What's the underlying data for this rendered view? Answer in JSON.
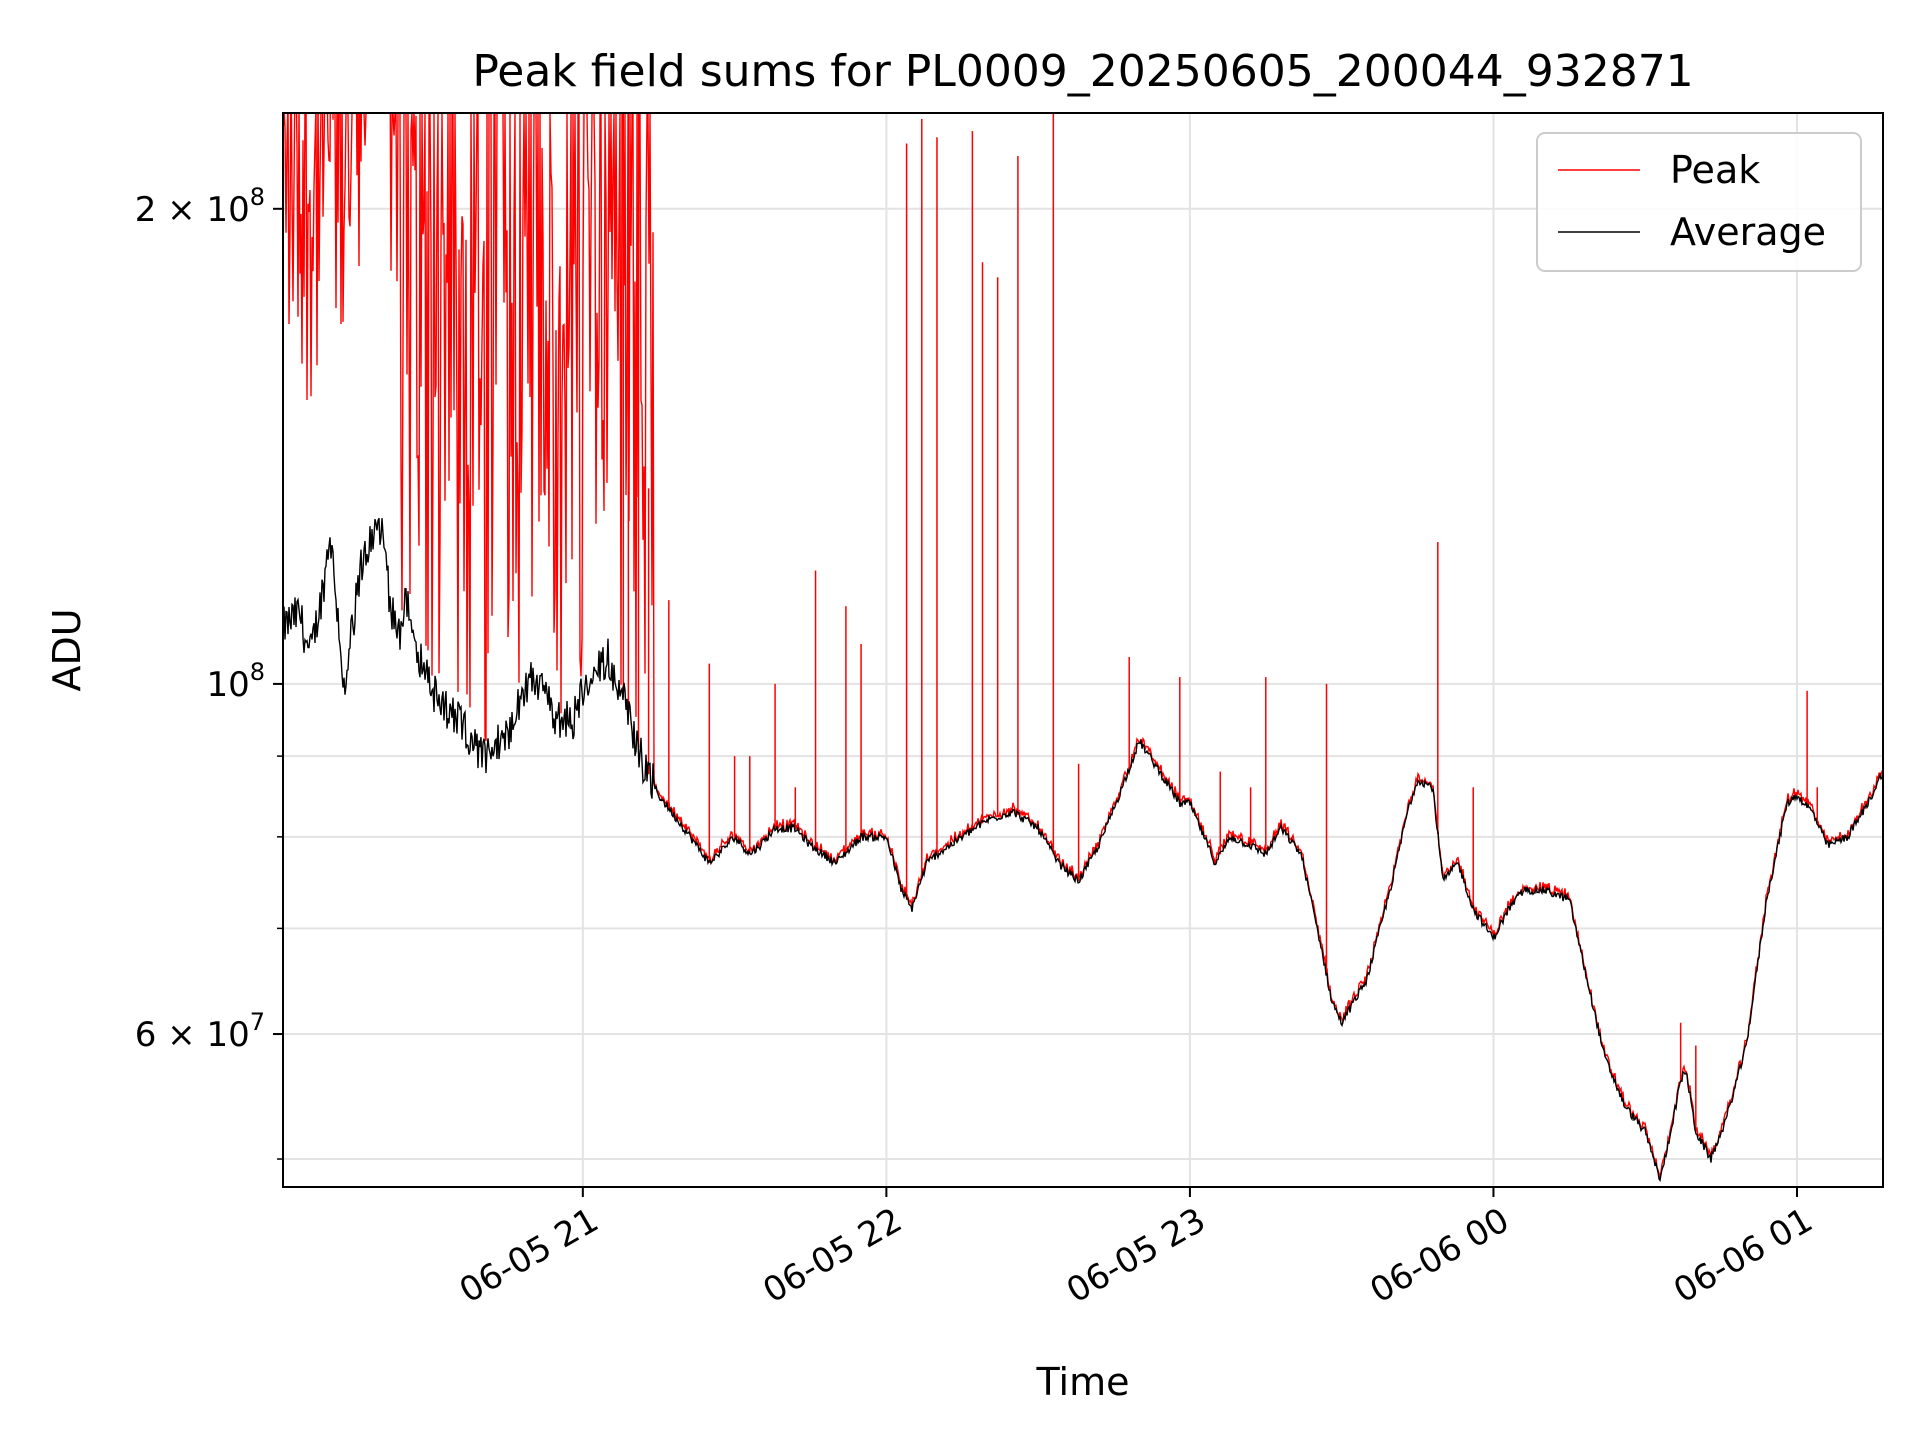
{
  "chart_data": {
    "type": "line",
    "title": "Peak field sums for PL0009_20250605_200044_932871",
    "xlabel": "Time",
    "ylabel": "ADU",
    "yscale": "log",
    "ylim": [
      48000000,
      230000000
    ],
    "xlim": [
      "2025-06-05 20:00:44",
      "2025-06-06 01:17:00"
    ],
    "grid": true,
    "legend_position": "top-right",
    "x_ticks": [
      {
        "t": "2025-06-05 21:00",
        "label": "06-05 21"
      },
      {
        "t": "2025-06-05 22:00",
        "label": "06-05 22"
      },
      {
        "t": "2025-06-05 23:00",
        "label": "06-05 23"
      },
      {
        "t": "2025-06-06 00:00",
        "label": "06-06 00"
      },
      {
        "t": "2025-06-06 01:00",
        "label": "06-06 01"
      }
    ],
    "y_ticks": [
      {
        "value": 60000000,
        "mant": "6 × 10",
        "exp": "7"
      },
      {
        "value": 100000000,
        "mant": "10",
        "exp": "8"
      },
      {
        "value": 200000000,
        "mant": "2 × 10",
        "exp": "8"
      }
    ],
    "y_minor_ticks": [
      50000000,
      70000000,
      80000000,
      90000000
    ],
    "series": [
      {
        "name": "Average",
        "color": "#000000",
        "x": [
          "2025-06-05 20:00",
          "2025-06-05 20:04",
          "2025-06-05 20:06",
          "2025-06-05 20:08",
          "2025-06-05 20:09",
          "2025-06-05 20:10",
          "2025-06-05 20:12",
          "2025-06-05 20:13",
          "2025-06-05 20:14",
          "2025-06-05 20:16",
          "2025-06-05 20:18",
          "2025-06-05 20:20",
          "2025-06-05 20:22",
          "2025-06-05 20:24",
          "2025-06-05 20:25",
          "2025-06-05 20:27",
          "2025-06-05 20:30",
          "2025-06-05 20:35",
          "2025-06-05 20:40",
          "2025-06-05 20:45",
          "2025-06-05 20:48",
          "2025-06-05 20:50",
          "2025-06-05 20:55",
          "2025-06-05 20:58",
          "2025-06-05 21:00",
          "2025-06-05 21:05",
          "2025-06-05 21:08",
          "2025-06-05 21:12",
          "2025-06-05 21:15",
          "2025-06-05 21:20",
          "2025-06-05 21:25",
          "2025-06-05 21:30",
          "2025-06-05 21:33",
          "2025-06-05 21:35",
          "2025-06-05 21:38",
          "2025-06-05 21:42",
          "2025-06-05 21:45",
          "2025-06-05 21:50",
          "2025-06-05 21:55",
          "2025-06-05 22:00",
          "2025-06-05 22:03",
          "2025-06-05 22:05",
          "2025-06-05 22:08",
          "2025-06-05 22:10",
          "2025-06-05 22:15",
          "2025-06-05 22:20",
          "2025-06-05 22:25",
          "2025-06-05 22:30",
          "2025-06-05 22:34",
          "2025-06-05 22:38",
          "2025-06-05 22:42",
          "2025-06-05 22:46",
          "2025-06-05 22:50",
          "2025-06-05 22:55",
          "2025-06-05 22:58",
          "2025-06-05 23:00",
          "2025-06-05 23:05",
          "2025-06-05 23:08",
          "2025-06-05 23:12",
          "2025-06-05 23:15",
          "2025-06-05 23:18",
          "2025-06-05 23:22",
          "2025-06-05 23:26",
          "2025-06-05 23:28",
          "2025-06-05 23:30",
          "2025-06-05 23:35",
          "2025-06-05 23:40",
          "2025-06-05 23:43",
          "2025-06-05 23:45",
          "2025-06-05 23:48",
          "2025-06-05 23:50",
          "2025-06-05 23:53",
          "2025-06-05 23:56",
          "2025-06-06 00:00",
          "2025-06-06 00:03",
          "2025-06-06 00:06",
          "2025-06-06 00:10",
          "2025-06-06 00:15",
          "2025-06-06 00:18",
          "2025-06-06 00:22",
          "2025-06-06 00:26",
          "2025-06-06 00:30",
          "2025-06-06 00:33",
          "2025-06-06 00:35",
          "2025-06-06 00:37",
          "2025-06-06 00:38",
          "2025-06-06 00:40",
          "2025-06-06 00:43",
          "2025-06-06 00:46",
          "2025-06-06 00:50",
          "2025-06-06 00:54",
          "2025-06-06 00:58",
          "2025-06-06 01:00",
          "2025-06-06 01:03",
          "2025-06-06 01:06",
          "2025-06-06 01:10",
          "2025-06-06 01:14",
          "2025-06-06 01:17"
        ],
        "y": [
          108000000,
          111000000,
          104000000,
          112000000,
          117000000,
          125000000,
          107000000,
          97000000,
          106000000,
          118000000,
          124000000,
          126000000,
          112000000,
          108000000,
          113000000,
          106000000,
          99000000,
          95000000,
          90000000,
          93000000,
          98000000,
          101000000,
          95000000,
          95000000,
          99000000,
          104000000,
          98000000,
          89000000,
          85000000,
          81000000,
          77000000,
          80000000,
          78000000,
          79000000,
          81000000,
          81000000,
          79000000,
          77000000,
          80000000,
          80000000,
          74000000,
          72000000,
          77000000,
          78000000,
          80000000,
          82000000,
          83000000,
          81000000,
          77000000,
          75000000,
          79000000,
          85000000,
          92000000,
          87000000,
          84000000,
          84000000,
          77000000,
          80000000,
          79000000,
          78000000,
          81000000,
          78000000,
          68000000,
          63000000,
          61000000,
          65000000,
          75000000,
          83000000,
          87000000,
          86000000,
          75000000,
          77000000,
          72000000,
          69000000,
          72000000,
          74000000,
          74000000,
          73000000,
          66000000,
          58000000,
          54000000,
          52000000,
          48500000,
          52000000,
          56000000,
          57000000,
          52000000,
          50000000,
          53000000,
          59000000,
          73000000,
          84000000,
          85000000,
          83000000,
          79000000,
          80000000,
          84000000,
          88000000
        ]
      },
      {
        "name": "Peak",
        "color": "#ff0000",
        "spikes": [
          {
            "t": "2025-06-05 21:08",
            "y": 230000000
          },
          {
            "t": "2025-06-05 21:09",
            "y": 230000000
          },
          {
            "t": "2025-06-05 21:11",
            "y": 230000000
          },
          {
            "t": "2025-06-05 21:13",
            "y": 133000000
          },
          {
            "t": "2025-06-05 21:17",
            "y": 113000000
          },
          {
            "t": "2025-06-05 21:25",
            "y": 103000000
          },
          {
            "t": "2025-06-05 21:30",
            "y": 90000000
          },
          {
            "t": "2025-06-05 21:33",
            "y": 90000000
          },
          {
            "t": "2025-06-05 21:38",
            "y": 100000000
          },
          {
            "t": "2025-06-05 21:42",
            "y": 86000000
          },
          {
            "t": "2025-06-05 21:46",
            "y": 118000000
          },
          {
            "t": "2025-06-05 21:52",
            "y": 112000000
          },
          {
            "t": "2025-06-05 21:55",
            "y": 106000000
          },
          {
            "t": "2025-06-05 22:04",
            "y": 220000000
          },
          {
            "t": "2025-06-05 22:07",
            "y": 228000000
          },
          {
            "t": "2025-06-05 22:10",
            "y": 222000000
          },
          {
            "t": "2025-06-05 22:17",
            "y": 224000000
          },
          {
            "t": "2025-06-05 22:19",
            "y": 185000000
          },
          {
            "t": "2025-06-05 22:22",
            "y": 181000000
          },
          {
            "t": "2025-06-05 22:26",
            "y": 216000000
          },
          {
            "t": "2025-06-05 22:33",
            "y": 230000000
          },
          {
            "t": "2025-06-05 22:38",
            "y": 89000000
          },
          {
            "t": "2025-06-05 22:48",
            "y": 104000000
          },
          {
            "t": "2025-06-05 22:58",
            "y": 101000000
          },
          {
            "t": "2025-06-05 23:06",
            "y": 88000000
          },
          {
            "t": "2025-06-05 23:12",
            "y": 86000000
          },
          {
            "t": "2025-06-05 23:15",
            "y": 101000000
          },
          {
            "t": "2025-06-05 23:27",
            "y": 100000000
          },
          {
            "t": "2025-06-05 23:49",
            "y": 123000000
          },
          {
            "t": "2025-06-05 23:56",
            "y": 86000000
          },
          {
            "t": "2025-06-06 00:37",
            "y": 61000000
          },
          {
            "t": "2025-06-06 00:40",
            "y": 59000000
          },
          {
            "t": "2025-06-06 01:02",
            "y": 99000000
          },
          {
            "t": "2025-06-06 01:04",
            "y": 86000000
          }
        ]
      }
    ]
  }
}
